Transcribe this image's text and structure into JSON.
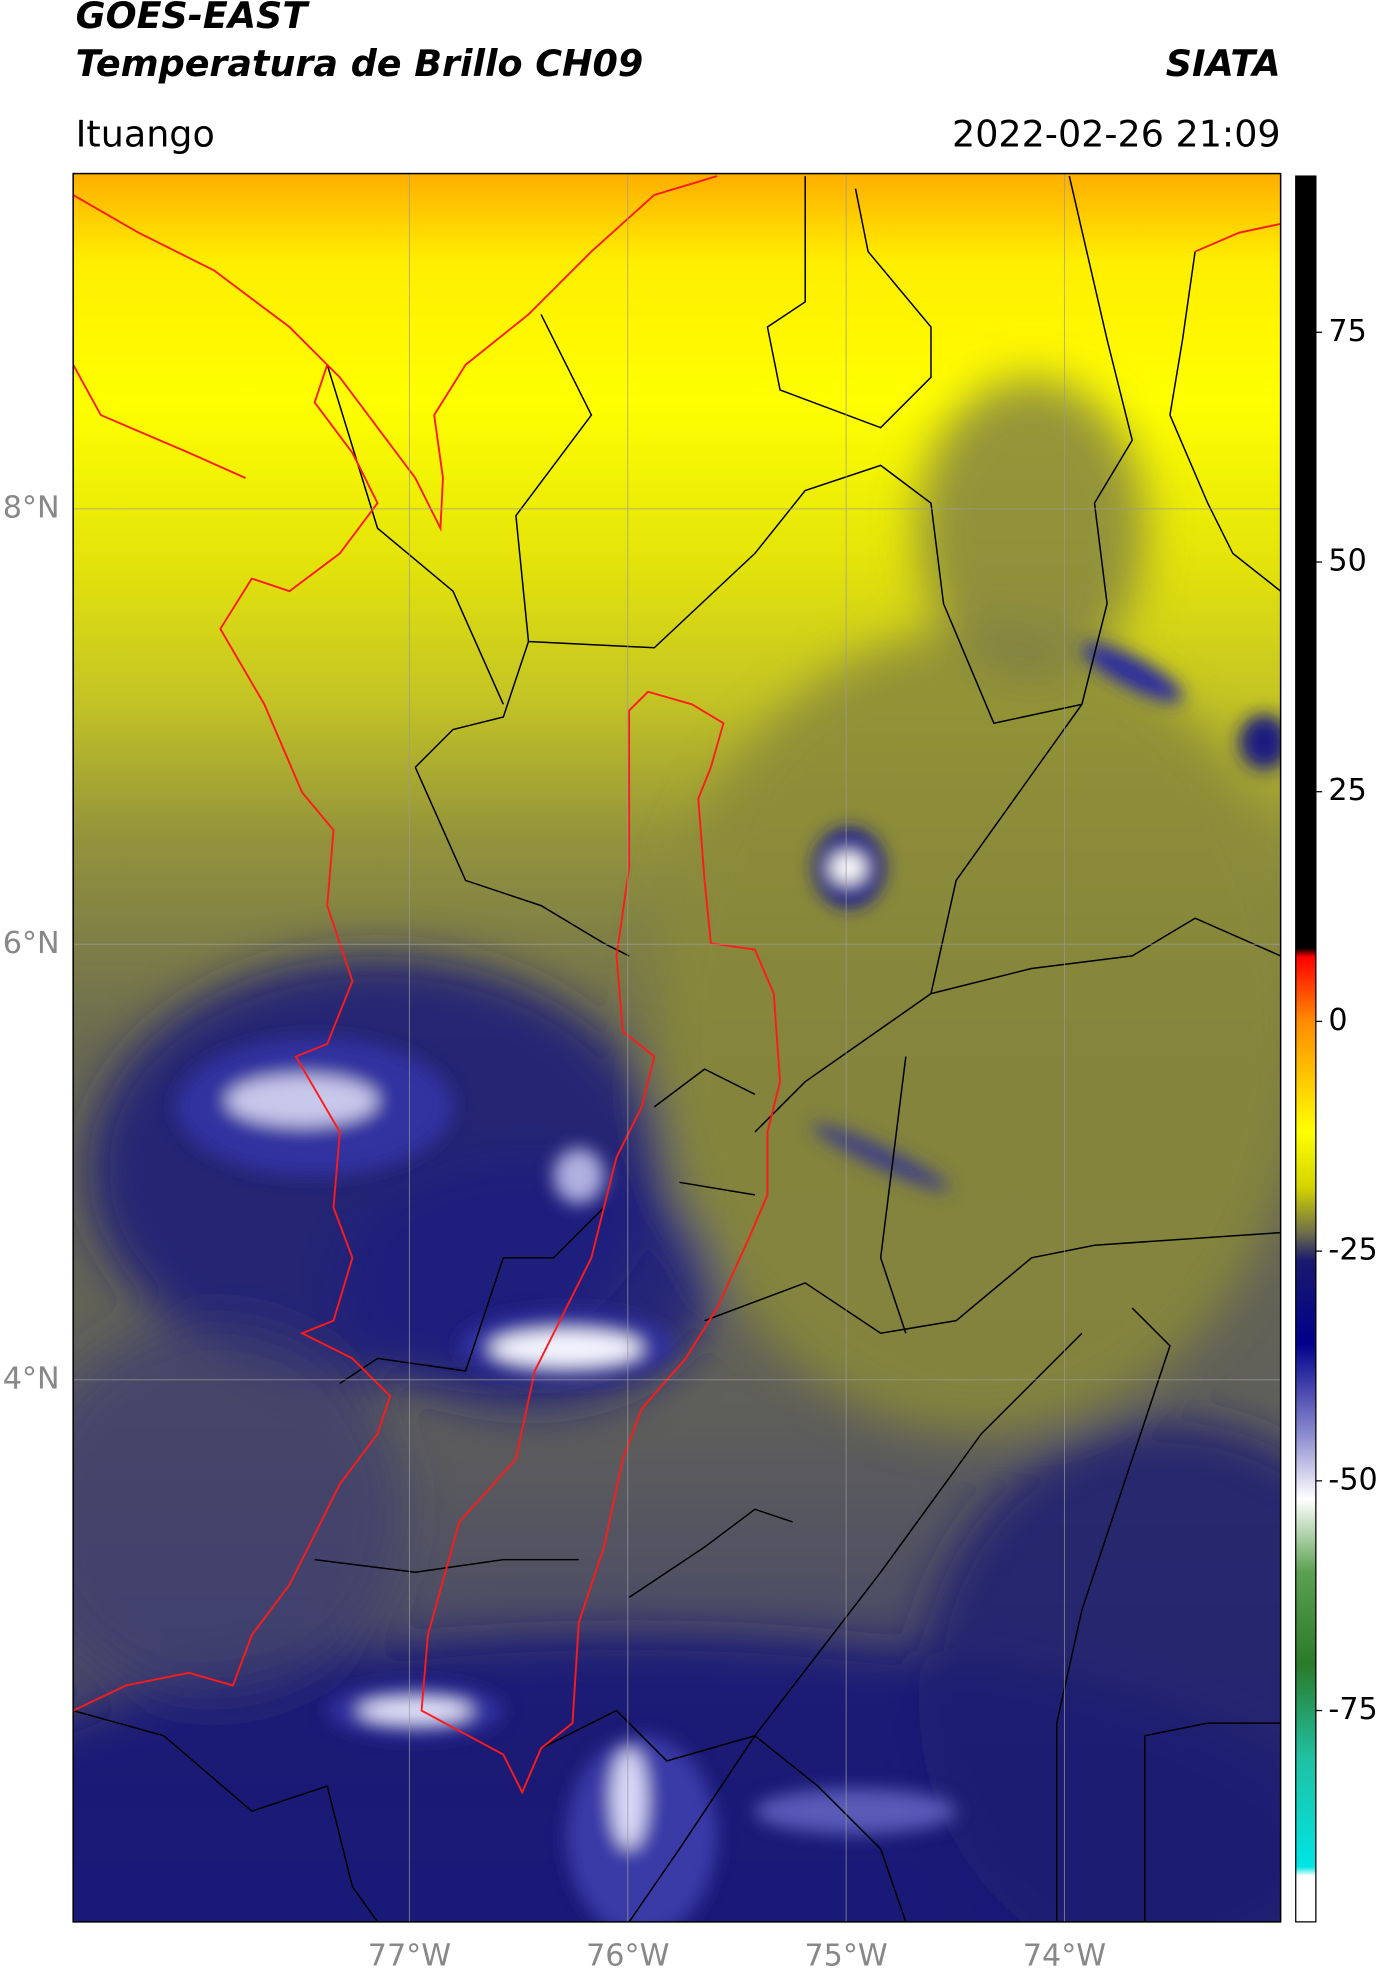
{
  "header": {
    "satellite": "GOES-EAST",
    "product": "Temperatura de Brillo CH09",
    "source": "SIATA",
    "region": "Ituango",
    "datetime": "2022-02-26 21:09"
  },
  "chart_data": {
    "type": "map",
    "xlim": [
      -78.54,
      -73.01
    ],
    "ylim": [
      1.51,
      9.54
    ],
    "xticks": [
      {
        "value": -77,
        "label": "77°W"
      },
      {
        "value": -76,
        "label": "76°W"
      },
      {
        "value": -75,
        "label": "75°W"
      },
      {
        "value": -74,
        "label": "74°W"
      }
    ],
    "yticks": [
      {
        "value": 8,
        "label": "8°N"
      },
      {
        "value": 6,
        "label": "6°N"
      },
      {
        "value": 4,
        "label": "4°N"
      }
    ],
    "grid": true,
    "colorbar": {
      "lim": [
        -98,
        92
      ],
      "ticks": [
        75,
        50,
        25,
        0,
        -25,
        -50,
        -75
      ],
      "stops": [
        {
          "value": 92,
          "color": "#000000"
        },
        {
          "value": 8,
          "color": "#000000"
        },
        {
          "value": 7,
          "color": "#ff0000"
        },
        {
          "value": 0,
          "color": "#ff8c00"
        },
        {
          "value": -12,
          "color": "#ffff00"
        },
        {
          "value": -18,
          "color": "#d4d400"
        },
        {
          "value": -23,
          "color": "#6e6e4a"
        },
        {
          "value": -26,
          "color": "#1a1a6e"
        },
        {
          "value": -35,
          "color": "#00008b"
        },
        {
          "value": -45,
          "color": "#8c8cd0"
        },
        {
          "value": -52,
          "color": "#ffffff"
        },
        {
          "value": -60,
          "color": "#5aa050"
        },
        {
          "value": -70,
          "color": "#2a7a2a"
        },
        {
          "value": -80,
          "color": "#20c0a0"
        },
        {
          "value": -92,
          "color": "#00e5e5"
        },
        {
          "value": -93,
          "color": "#ffffff"
        },
        {
          "value": -98,
          "color": "#ffffff"
        }
      ]
    }
  }
}
